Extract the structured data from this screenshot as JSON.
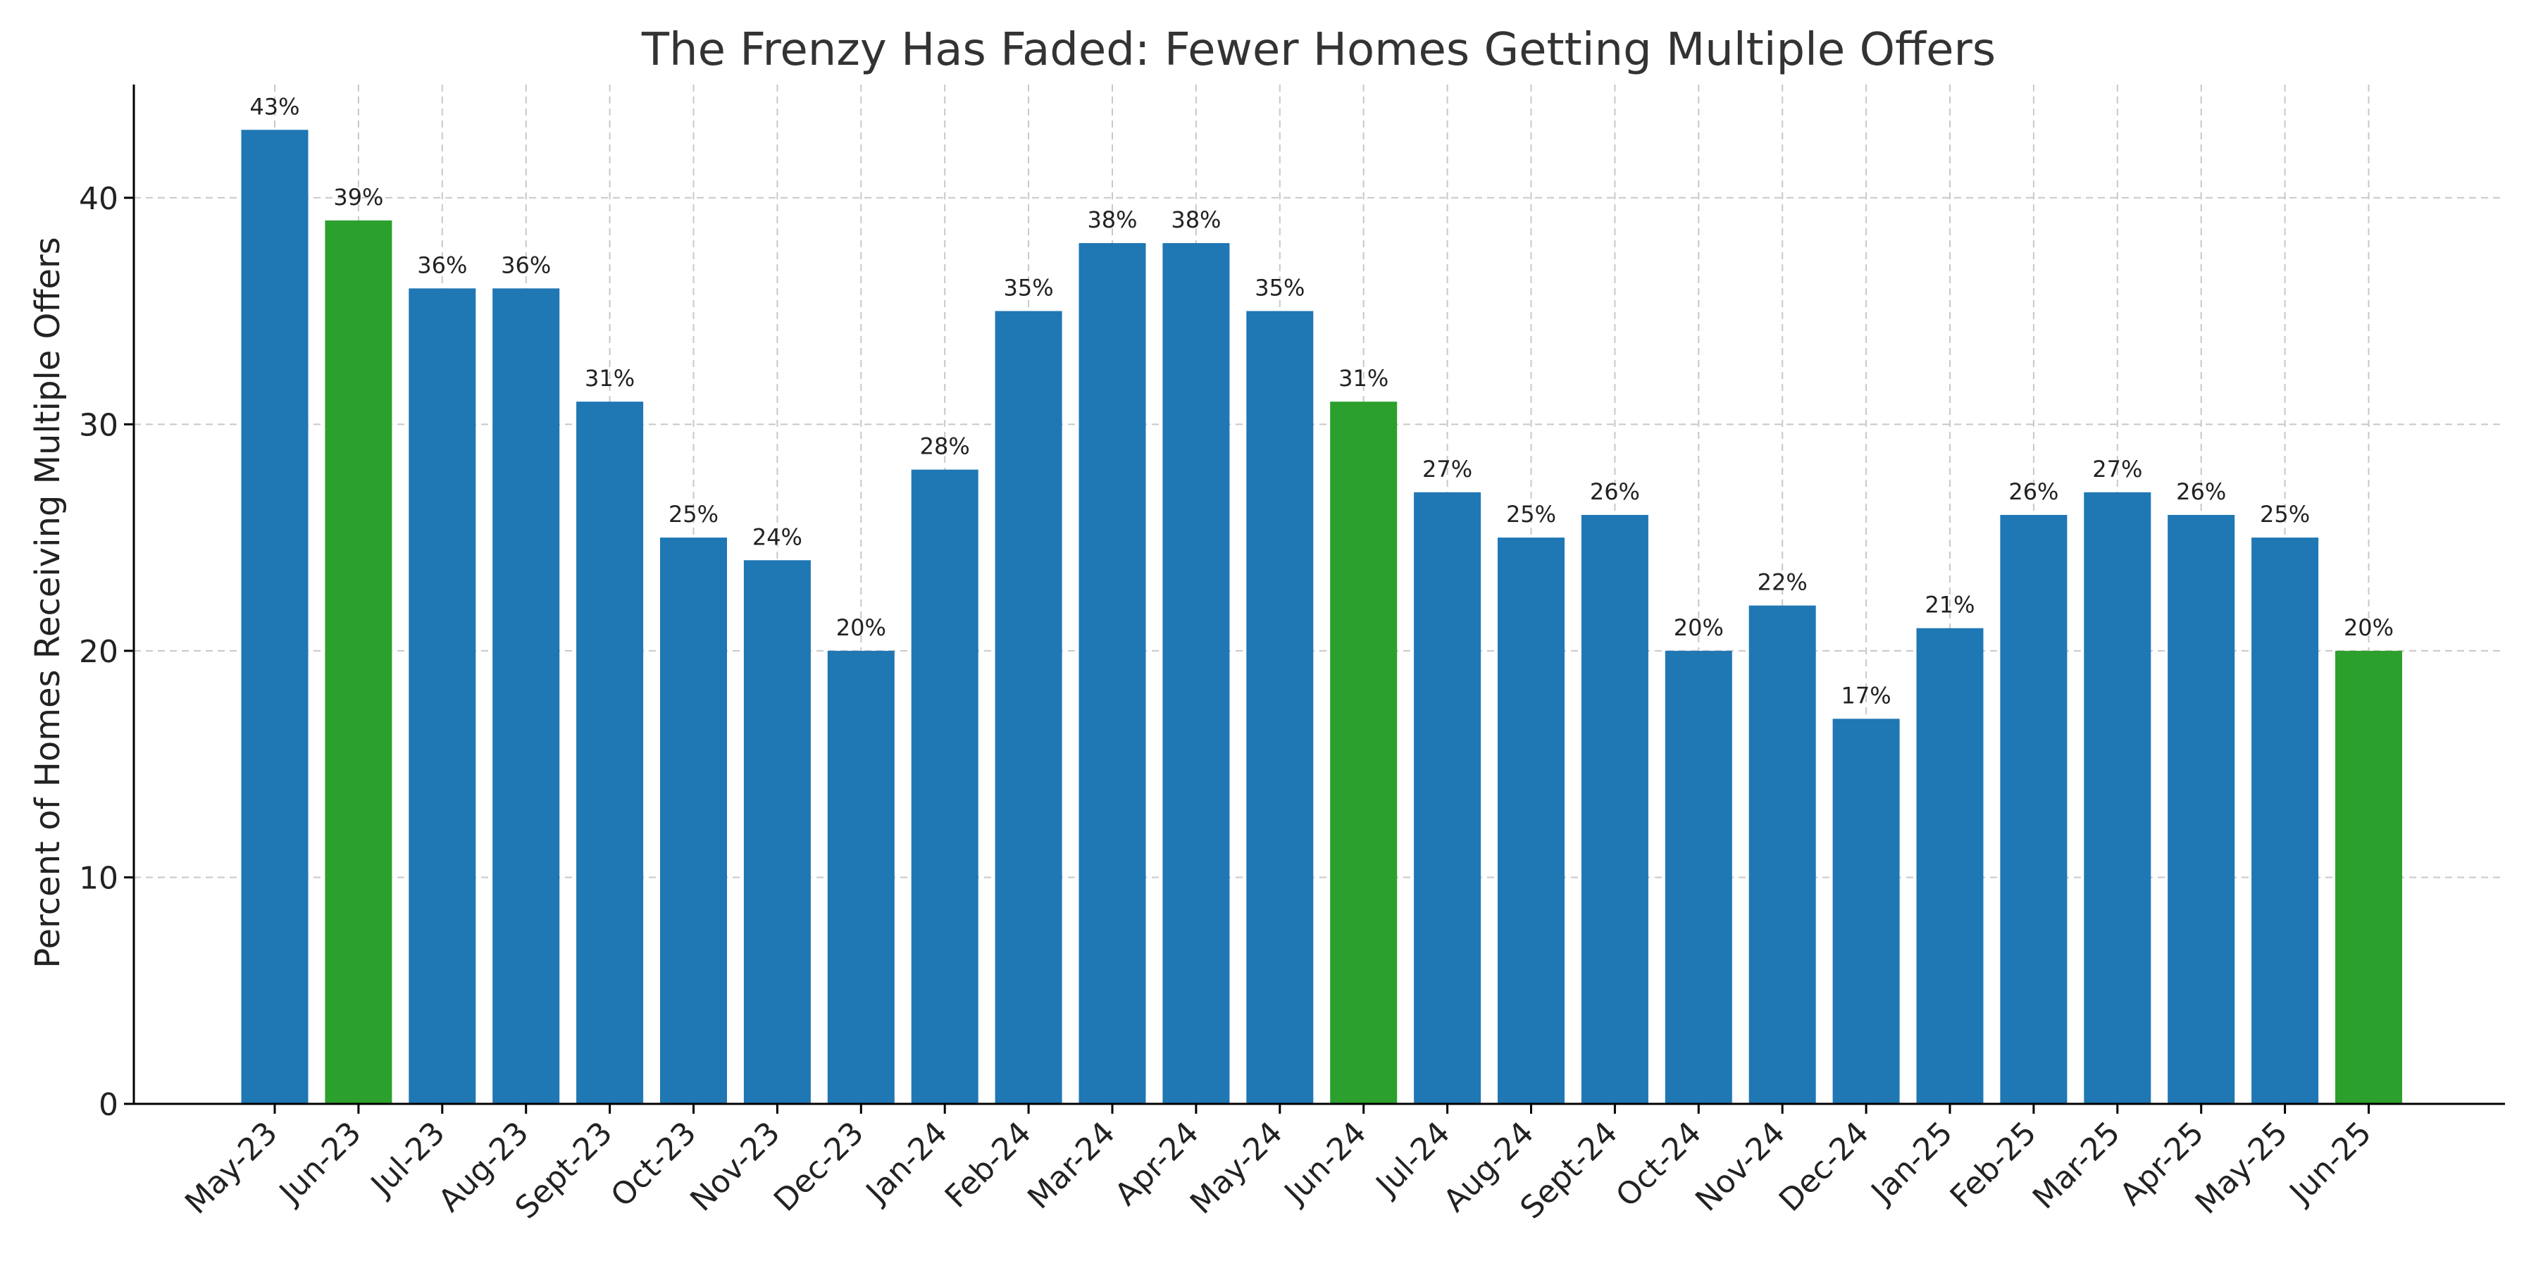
{
  "chart_data": {
    "type": "bar",
    "title": "The Frenzy Has Faded: Fewer Homes Getting Multiple Offers",
    "xlabel": "",
    "ylabel": "Percent of Homes Receiving Multiple Offers",
    "ylim": [
      0,
      45
    ],
    "yticks": [
      0,
      10,
      20,
      30,
      40
    ],
    "grid": true,
    "categories": [
      "May-23",
      "Jun-23",
      "Jul-23",
      "Aug-23",
      "Sept-23",
      "Oct-23",
      "Nov-23",
      "Dec-23",
      "Jan-24",
      "Feb-24",
      "Mar-24",
      "Apr-24",
      "May-24",
      "Jun-24",
      "Jul-24",
      "Aug-24",
      "Sept-24",
      "Oct-24",
      "Nov-24",
      "Dec-24",
      "Jan-25",
      "Feb-25",
      "Mar-25",
      "Apr-25",
      "May-25",
      "Jun-25"
    ],
    "values": [
      43,
      39,
      36,
      36,
      31,
      25,
      24,
      20,
      28,
      35,
      38,
      38,
      35,
      31,
      27,
      25,
      26,
      20,
      22,
      17,
      21,
      26,
      27,
      26,
      25,
      20
    ],
    "data_labels": [
      "43%",
      "39%",
      "36%",
      "36%",
      "31%",
      "25%",
      "24%",
      "20%",
      "28%",
      "35%",
      "38%",
      "38%",
      "35%",
      "31%",
      "27%",
      "25%",
      "26%",
      "20%",
      "22%",
      "17%",
      "21%",
      "26%",
      "27%",
      "26%",
      "25%",
      "20%"
    ],
    "highlighted": [
      "Jun-23",
      "Jun-24",
      "Jun-25"
    ],
    "colors": {
      "default": "#1f77b4",
      "highlight": "#2ca02c"
    }
  }
}
